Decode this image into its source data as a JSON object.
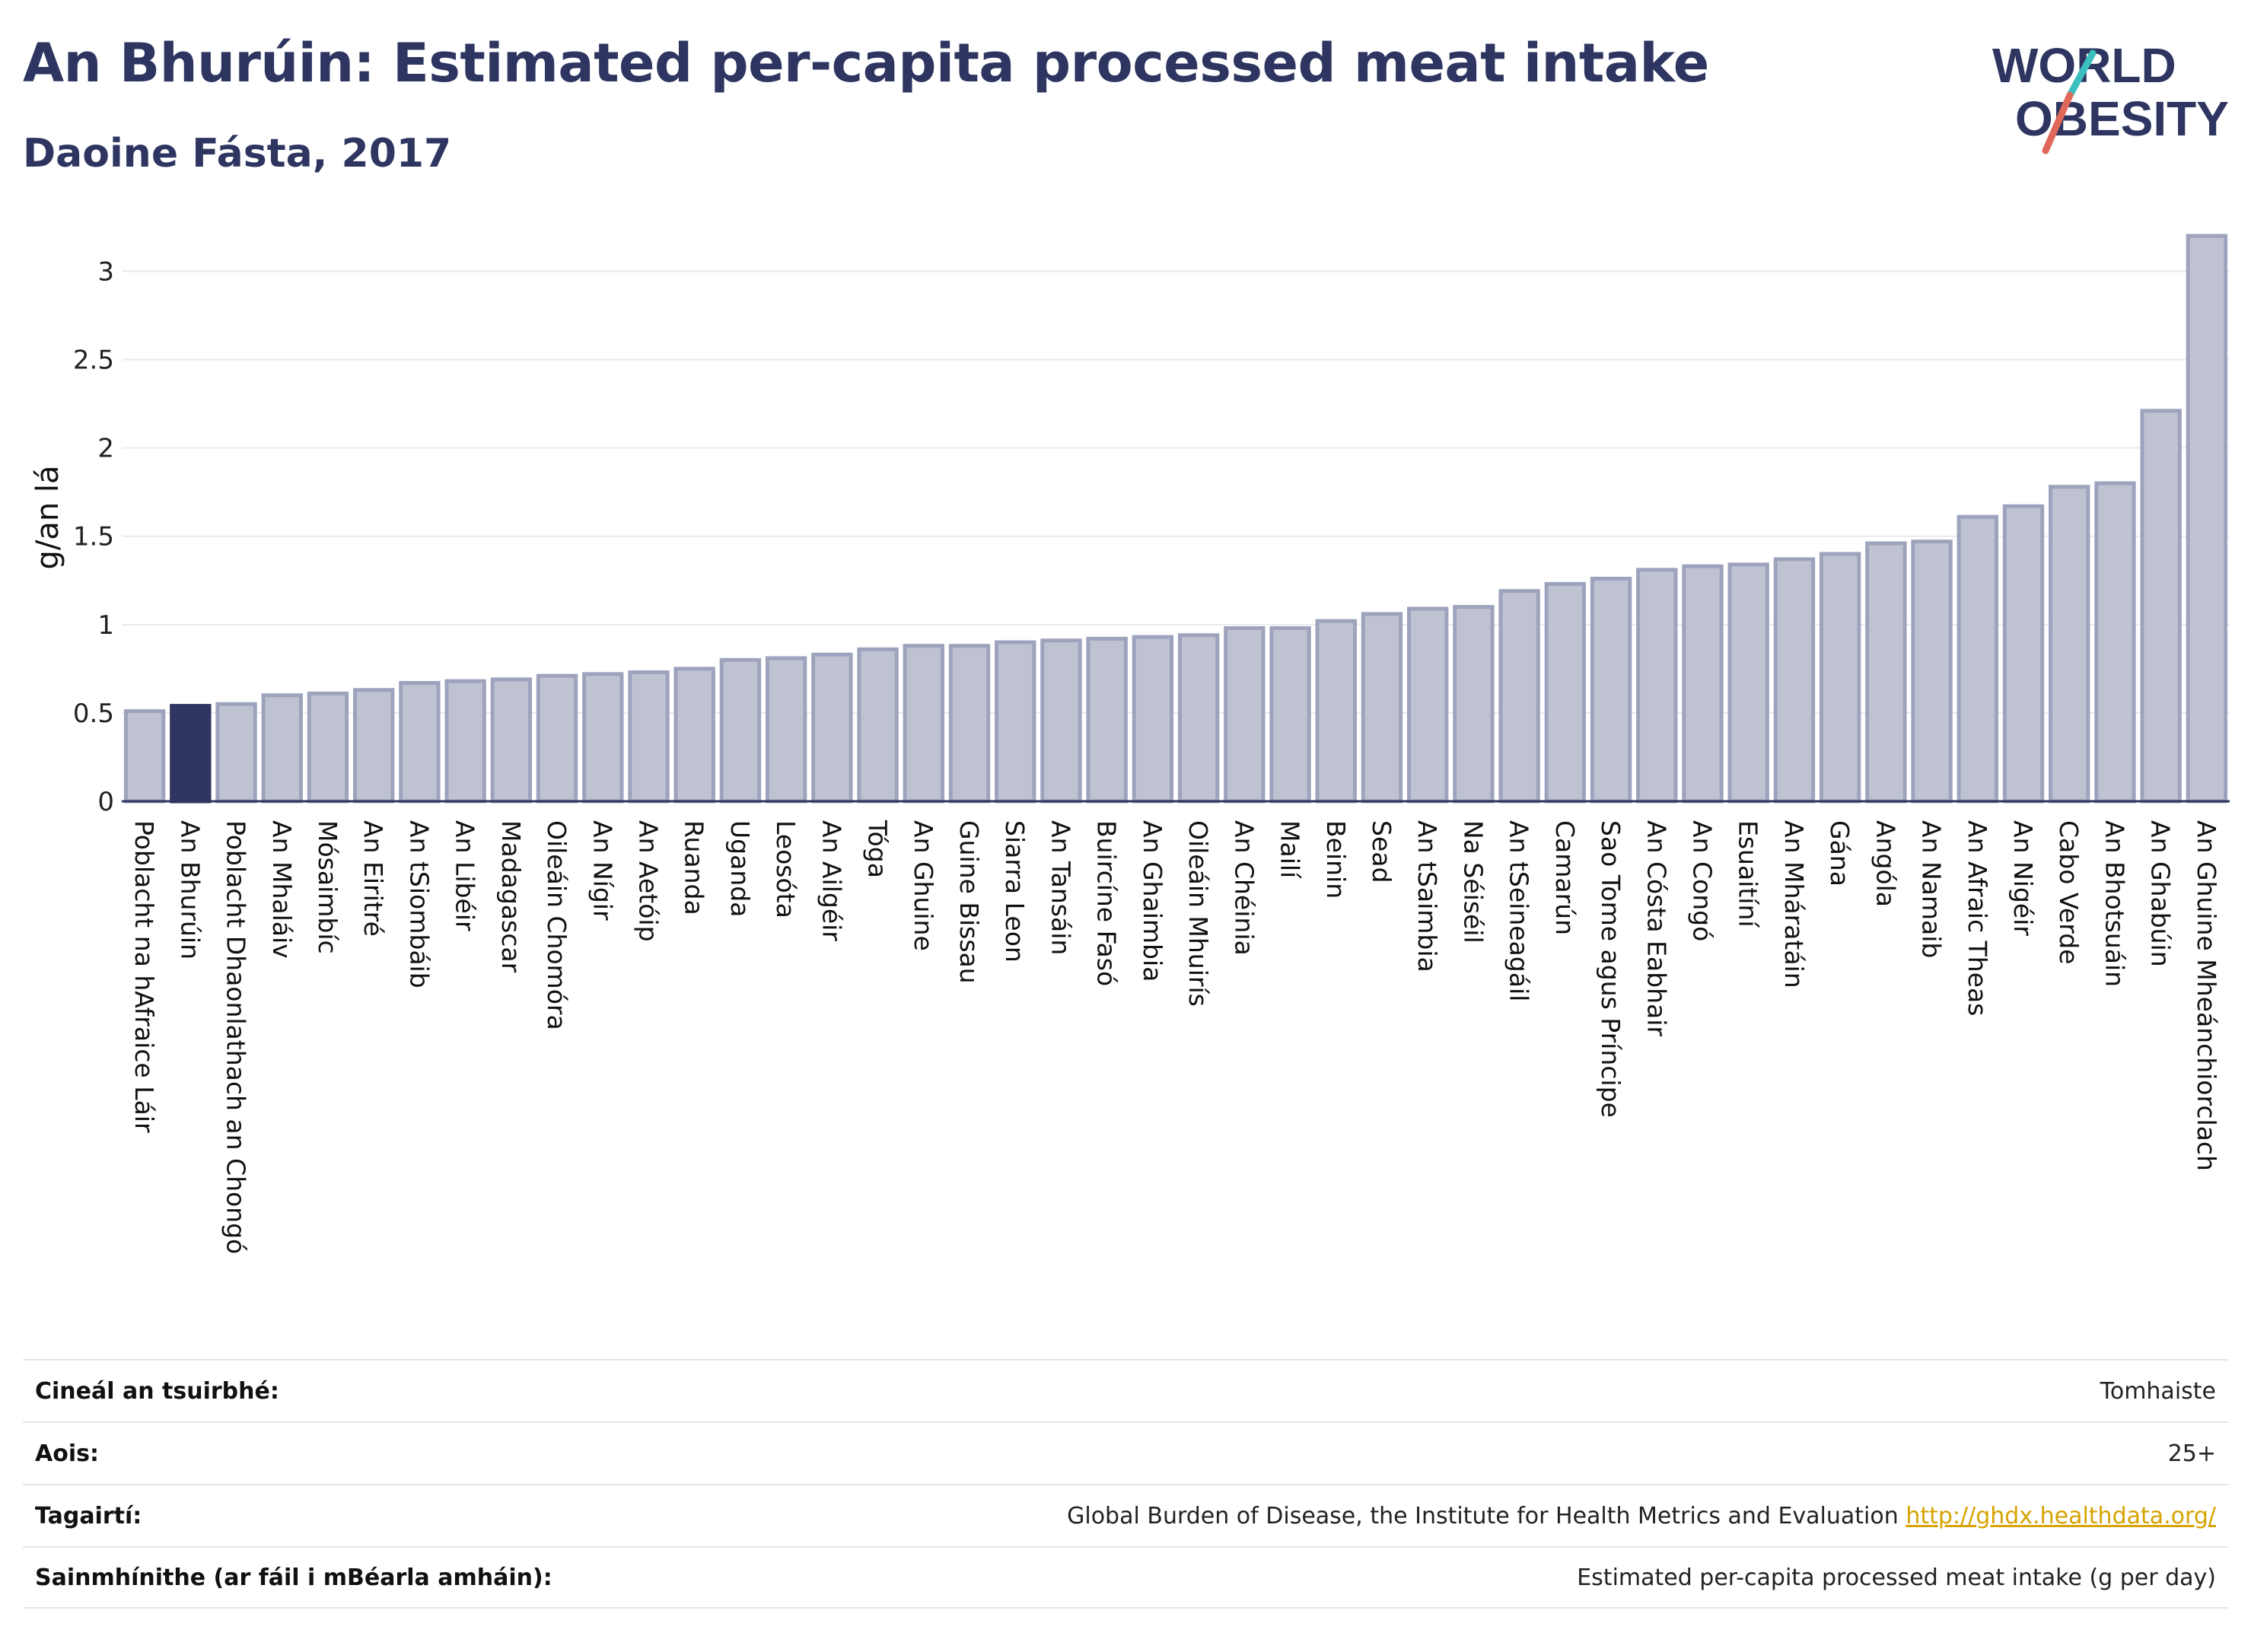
{
  "header": {
    "title": "An Bhurúin: Estimated per-capita processed meat intake",
    "subtitle": "Daoine Fásta, 2017"
  },
  "logo": {
    "line1": "WORLD",
    "line2": "OBESITY",
    "colors": {
      "text": "#2d3560",
      "slash_teal": "#3bbfbf",
      "slash_red": "#e0685a"
    }
  },
  "colors": {
    "bar_fill": "#bfc3d1",
    "bar_stroke": "#9ea3bd",
    "highlight_fill": "#2d3560",
    "axis": "#2d3560",
    "grid": "#e8eaee"
  },
  "chart_data": {
    "type": "bar",
    "ylabel": "g/an lá",
    "ylim": [
      0,
      3.2
    ],
    "yticks": [
      0,
      0.5,
      1,
      1.5,
      2,
      2.5,
      3
    ],
    "ytick_labels": [
      "0",
      "0.5",
      "1",
      "1.5",
      "2",
      "2.5",
      "3"
    ],
    "grid": true,
    "highlight": "An Bhurúin",
    "categories": [
      "Poblacht na hAfraice Láir",
      "An Bhurúin",
      "Poblacht Dhaonlathach an Chongó",
      "An Mhaláiv",
      "Mósaimbíc",
      "An Eiritré",
      "An tSiombáib",
      "An Libéir",
      "Madagascar",
      "Oileáin Chomóra",
      "An Nígir",
      "An Aetóip",
      "Ruanda",
      "Uganda",
      "Leosóta",
      "An Ailgéir",
      "Tóga",
      "An Ghuine",
      "Guine Bissau",
      "Siarra Leon",
      "An Tansáin",
      "Buircíne Fasó",
      "An Ghaimbia",
      "Oileáin Mhuirís",
      "An Chéinia",
      "Mailí",
      "Beinin",
      "Sead",
      "An tSaimbia",
      "Na Séiséil",
      "An tSeineagáil",
      "Camarún",
      "Sao Tome agus Príncipe",
      "An Cósta Eabhair",
      "An Congó",
      "Esuaitíní",
      "An Mháratáin",
      "Gána",
      "Angóla",
      "An Namaib",
      "An Afraic Theas",
      "An Nigéir",
      "Cabo Verde",
      "An Bhotsuáin",
      "An Ghabúin",
      "An Ghuine Mheánchiorclach"
    ],
    "values": [
      0.51,
      0.54,
      0.55,
      0.6,
      0.61,
      0.63,
      0.67,
      0.68,
      0.69,
      0.71,
      0.72,
      0.73,
      0.75,
      0.8,
      0.81,
      0.83,
      0.86,
      0.88,
      0.88,
      0.9,
      0.91,
      0.92,
      0.93,
      0.94,
      0.98,
      0.98,
      1.02,
      1.06,
      1.09,
      1.1,
      1.19,
      1.23,
      1.26,
      1.31,
      1.33,
      1.34,
      1.37,
      1.4,
      1.46,
      1.47,
      1.61,
      1.67,
      1.78,
      1.8,
      2.21,
      3.2
    ]
  },
  "meta": {
    "rows": [
      {
        "label": "Cineál an tsuirbhé:",
        "value": "Tomhaiste"
      },
      {
        "label": "Aois:",
        "value": "25+"
      },
      {
        "label": "Tagairtí:",
        "value": "Global Burden of Disease, the Institute for Health Metrics and Evaluation",
        "link": "http://ghdx.healthdata.org/"
      },
      {
        "label": "Sainmhínithe (ar fáil i mBéarla amháin):",
        "value": "Estimated per-capita processed meat intake (g per day)"
      }
    ]
  }
}
